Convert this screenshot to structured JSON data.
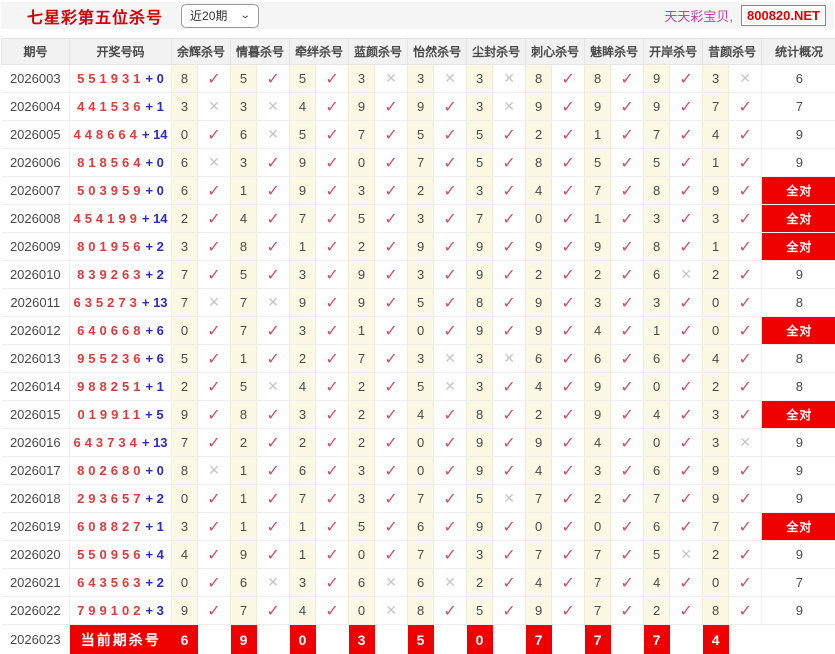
{
  "topbar": {
    "title": "七星彩第五位杀号",
    "range_select": "近20期",
    "site_name": "天天彩宝贝,",
    "site_domain": "800820.NET"
  },
  "icons": {
    "check": "✓",
    "cross": "✕",
    "dropdown_chevron": "⌄"
  },
  "colors": {
    "title_red": "#d40000",
    "draw_red": "#e4393c",
    "bonus_blue": "#2b2bd0",
    "check_red": "#d05068",
    "cross_gray": "#c6c6c6",
    "kill_cell_yellow": "#fbf8e3",
    "stat_all_red": "#ee0000",
    "site_name_pink": "#cf3da0"
  },
  "table": {
    "headers": {
      "period": "期号",
      "draw": "开奖号码",
      "stats": "统计概况",
      "kill_columns": [
        "余辉杀号",
        "情暮杀号",
        "牵绊杀号",
        "蓝颜杀号",
        "怡然杀号",
        "尘封杀号",
        "刺心杀号",
        "魅眸杀号",
        "开岸杀号",
        "昔颜杀号"
      ]
    },
    "stat_all_label": "全对",
    "rows": [
      {
        "period": "2026003",
        "draw": "551931",
        "bonus": "0",
        "kills": [
          {
            "n": "8",
            "hit": true
          },
          {
            "n": "5",
            "hit": true
          },
          {
            "n": "5",
            "hit": true
          },
          {
            "n": "3",
            "hit": false
          },
          {
            "n": "3",
            "hit": false
          },
          {
            "n": "3",
            "hit": false
          },
          {
            "n": "8",
            "hit": true
          },
          {
            "n": "8",
            "hit": true
          },
          {
            "n": "9",
            "hit": true
          },
          {
            "n": "3",
            "hit": false
          }
        ],
        "stat": "6",
        "all": false
      },
      {
        "period": "2026004",
        "draw": "441536",
        "bonus": "1",
        "kills": [
          {
            "n": "3",
            "hit": false
          },
          {
            "n": "3",
            "hit": false
          },
          {
            "n": "4",
            "hit": true
          },
          {
            "n": "9",
            "hit": true
          },
          {
            "n": "9",
            "hit": true
          },
          {
            "n": "3",
            "hit": false
          },
          {
            "n": "9",
            "hit": true
          },
          {
            "n": "9",
            "hit": true
          },
          {
            "n": "9",
            "hit": true
          },
          {
            "n": "7",
            "hit": true
          }
        ],
        "stat": "7",
        "all": false
      },
      {
        "period": "2026005",
        "draw": "448664",
        "bonus": "14",
        "kills": [
          {
            "n": "0",
            "hit": true
          },
          {
            "n": "6",
            "hit": false
          },
          {
            "n": "5",
            "hit": true
          },
          {
            "n": "7",
            "hit": true
          },
          {
            "n": "5",
            "hit": true
          },
          {
            "n": "5",
            "hit": true
          },
          {
            "n": "2",
            "hit": true
          },
          {
            "n": "1",
            "hit": true
          },
          {
            "n": "7",
            "hit": true
          },
          {
            "n": "4",
            "hit": true
          }
        ],
        "stat": "9",
        "all": false
      },
      {
        "period": "2026006",
        "draw": "818564",
        "bonus": "0",
        "kills": [
          {
            "n": "6",
            "hit": false
          },
          {
            "n": "3",
            "hit": true
          },
          {
            "n": "9",
            "hit": true
          },
          {
            "n": "0",
            "hit": true
          },
          {
            "n": "7",
            "hit": true
          },
          {
            "n": "5",
            "hit": true
          },
          {
            "n": "8",
            "hit": true
          },
          {
            "n": "5",
            "hit": true
          },
          {
            "n": "5",
            "hit": true
          },
          {
            "n": "1",
            "hit": true
          }
        ],
        "stat": "9",
        "all": false
      },
      {
        "period": "2026007",
        "draw": "503959",
        "bonus": "0",
        "kills": [
          {
            "n": "6",
            "hit": true
          },
          {
            "n": "1",
            "hit": true
          },
          {
            "n": "9",
            "hit": true
          },
          {
            "n": "3",
            "hit": true
          },
          {
            "n": "2",
            "hit": true
          },
          {
            "n": "3",
            "hit": true
          },
          {
            "n": "4",
            "hit": true
          },
          {
            "n": "7",
            "hit": true
          },
          {
            "n": "8",
            "hit": true
          },
          {
            "n": "9",
            "hit": true
          }
        ],
        "stat": "全对",
        "all": true
      },
      {
        "period": "2026008",
        "draw": "454199",
        "bonus": "14",
        "kills": [
          {
            "n": "2",
            "hit": true
          },
          {
            "n": "4",
            "hit": true
          },
          {
            "n": "7",
            "hit": true
          },
          {
            "n": "5",
            "hit": true
          },
          {
            "n": "3",
            "hit": true
          },
          {
            "n": "7",
            "hit": true
          },
          {
            "n": "0",
            "hit": true
          },
          {
            "n": "1",
            "hit": true
          },
          {
            "n": "3",
            "hit": true
          },
          {
            "n": "3",
            "hit": true
          }
        ],
        "stat": "全对",
        "all": true
      },
      {
        "period": "2026009",
        "draw": "801956",
        "bonus": "2",
        "kills": [
          {
            "n": "3",
            "hit": true
          },
          {
            "n": "8",
            "hit": true
          },
          {
            "n": "1",
            "hit": true
          },
          {
            "n": "2",
            "hit": true
          },
          {
            "n": "9",
            "hit": true
          },
          {
            "n": "9",
            "hit": true
          },
          {
            "n": "9",
            "hit": true
          },
          {
            "n": "9",
            "hit": true
          },
          {
            "n": "8",
            "hit": true
          },
          {
            "n": "1",
            "hit": true
          }
        ],
        "stat": "全对",
        "all": true
      },
      {
        "period": "2026010",
        "draw": "839263",
        "bonus": "2",
        "kills": [
          {
            "n": "7",
            "hit": true
          },
          {
            "n": "5",
            "hit": true
          },
          {
            "n": "3",
            "hit": true
          },
          {
            "n": "9",
            "hit": true
          },
          {
            "n": "3",
            "hit": true
          },
          {
            "n": "9",
            "hit": true
          },
          {
            "n": "2",
            "hit": true
          },
          {
            "n": "2",
            "hit": true
          },
          {
            "n": "6",
            "hit": false
          },
          {
            "n": "2",
            "hit": true
          }
        ],
        "stat": "9",
        "all": false
      },
      {
        "period": "2026011",
        "draw": "635273",
        "bonus": "13",
        "kills": [
          {
            "n": "7",
            "hit": false
          },
          {
            "n": "7",
            "hit": false
          },
          {
            "n": "9",
            "hit": true
          },
          {
            "n": "9",
            "hit": true
          },
          {
            "n": "5",
            "hit": true
          },
          {
            "n": "8",
            "hit": true
          },
          {
            "n": "9",
            "hit": true
          },
          {
            "n": "3",
            "hit": true
          },
          {
            "n": "3",
            "hit": true
          },
          {
            "n": "0",
            "hit": true
          }
        ],
        "stat": "8",
        "all": false
      },
      {
        "period": "2026012",
        "draw": "640668",
        "bonus": "6",
        "kills": [
          {
            "n": "0",
            "hit": true
          },
          {
            "n": "7",
            "hit": true
          },
          {
            "n": "3",
            "hit": true
          },
          {
            "n": "1",
            "hit": true
          },
          {
            "n": "0",
            "hit": true
          },
          {
            "n": "9",
            "hit": true
          },
          {
            "n": "9",
            "hit": true
          },
          {
            "n": "4",
            "hit": true
          },
          {
            "n": "1",
            "hit": true
          },
          {
            "n": "0",
            "hit": true
          }
        ],
        "stat": "全对",
        "all": true
      },
      {
        "period": "2026013",
        "draw": "955236",
        "bonus": "6",
        "kills": [
          {
            "n": "5",
            "hit": true
          },
          {
            "n": "1",
            "hit": true
          },
          {
            "n": "2",
            "hit": true
          },
          {
            "n": "7",
            "hit": true
          },
          {
            "n": "3",
            "hit": false
          },
          {
            "n": "3",
            "hit": false
          },
          {
            "n": "6",
            "hit": true
          },
          {
            "n": "6",
            "hit": true
          },
          {
            "n": "6",
            "hit": true
          },
          {
            "n": "4",
            "hit": true
          }
        ],
        "stat": "8",
        "all": false
      },
      {
        "period": "2026014",
        "draw": "988251",
        "bonus": "1",
        "kills": [
          {
            "n": "2",
            "hit": true
          },
          {
            "n": "5",
            "hit": false
          },
          {
            "n": "4",
            "hit": true
          },
          {
            "n": "2",
            "hit": true
          },
          {
            "n": "5",
            "hit": false
          },
          {
            "n": "3",
            "hit": true
          },
          {
            "n": "4",
            "hit": true
          },
          {
            "n": "9",
            "hit": true
          },
          {
            "n": "0",
            "hit": true
          },
          {
            "n": "2",
            "hit": true
          }
        ],
        "stat": "8",
        "all": false
      },
      {
        "period": "2026015",
        "draw": "019911",
        "bonus": "5",
        "kills": [
          {
            "n": "9",
            "hit": true
          },
          {
            "n": "8",
            "hit": true
          },
          {
            "n": "3",
            "hit": true
          },
          {
            "n": "2",
            "hit": true
          },
          {
            "n": "4",
            "hit": true
          },
          {
            "n": "8",
            "hit": true
          },
          {
            "n": "2",
            "hit": true
          },
          {
            "n": "9",
            "hit": true
          },
          {
            "n": "4",
            "hit": true
          },
          {
            "n": "3",
            "hit": true
          }
        ],
        "stat": "全对",
        "all": true
      },
      {
        "period": "2026016",
        "draw": "643734",
        "bonus": "13",
        "kills": [
          {
            "n": "7",
            "hit": true
          },
          {
            "n": "2",
            "hit": true
          },
          {
            "n": "2",
            "hit": true
          },
          {
            "n": "2",
            "hit": true
          },
          {
            "n": "0",
            "hit": true
          },
          {
            "n": "9",
            "hit": true
          },
          {
            "n": "9",
            "hit": true
          },
          {
            "n": "4",
            "hit": true
          },
          {
            "n": "0",
            "hit": true
          },
          {
            "n": "3",
            "hit": false
          }
        ],
        "stat": "9",
        "all": false
      },
      {
        "period": "2026017",
        "draw": "802680",
        "bonus": "0",
        "kills": [
          {
            "n": "8",
            "hit": false
          },
          {
            "n": "1",
            "hit": true
          },
          {
            "n": "6",
            "hit": true
          },
          {
            "n": "3",
            "hit": true
          },
          {
            "n": "0",
            "hit": true
          },
          {
            "n": "9",
            "hit": true
          },
          {
            "n": "4",
            "hit": true
          },
          {
            "n": "3",
            "hit": true
          },
          {
            "n": "6",
            "hit": true
          },
          {
            "n": "9",
            "hit": true
          }
        ],
        "stat": "9",
        "all": false
      },
      {
        "period": "2026018",
        "draw": "293657",
        "bonus": "2",
        "kills": [
          {
            "n": "0",
            "hit": true
          },
          {
            "n": "1",
            "hit": true
          },
          {
            "n": "7",
            "hit": true
          },
          {
            "n": "3",
            "hit": true
          },
          {
            "n": "7",
            "hit": true
          },
          {
            "n": "5",
            "hit": false
          },
          {
            "n": "7",
            "hit": true
          },
          {
            "n": "2",
            "hit": true
          },
          {
            "n": "7",
            "hit": true
          },
          {
            "n": "9",
            "hit": true
          }
        ],
        "stat": "9",
        "all": false
      },
      {
        "period": "2026019",
        "draw": "608827",
        "bonus": "1",
        "kills": [
          {
            "n": "3",
            "hit": true
          },
          {
            "n": "1",
            "hit": true
          },
          {
            "n": "1",
            "hit": true
          },
          {
            "n": "5",
            "hit": true
          },
          {
            "n": "6",
            "hit": true
          },
          {
            "n": "9",
            "hit": true
          },
          {
            "n": "0",
            "hit": true
          },
          {
            "n": "0",
            "hit": true
          },
          {
            "n": "6",
            "hit": true
          },
          {
            "n": "7",
            "hit": true
          }
        ],
        "stat": "全对",
        "all": true
      },
      {
        "period": "2026020",
        "draw": "550956",
        "bonus": "4",
        "kills": [
          {
            "n": "4",
            "hit": true
          },
          {
            "n": "9",
            "hit": true
          },
          {
            "n": "1",
            "hit": true
          },
          {
            "n": "0",
            "hit": true
          },
          {
            "n": "7",
            "hit": true
          },
          {
            "n": "3",
            "hit": true
          },
          {
            "n": "7",
            "hit": true
          },
          {
            "n": "7",
            "hit": true
          },
          {
            "n": "5",
            "hit": false
          },
          {
            "n": "2",
            "hit": true
          }
        ],
        "stat": "9",
        "all": false
      },
      {
        "period": "2026021",
        "draw": "643563",
        "bonus": "2",
        "kills": [
          {
            "n": "0",
            "hit": true
          },
          {
            "n": "6",
            "hit": false
          },
          {
            "n": "3",
            "hit": true
          },
          {
            "n": "6",
            "hit": false
          },
          {
            "n": "6",
            "hit": false
          },
          {
            "n": "2",
            "hit": true
          },
          {
            "n": "4",
            "hit": true
          },
          {
            "n": "7",
            "hit": true
          },
          {
            "n": "4",
            "hit": true
          },
          {
            "n": "0",
            "hit": true
          }
        ],
        "stat": "7",
        "all": false
      },
      {
        "period": "2026022",
        "draw": "799102",
        "bonus": "3",
        "kills": [
          {
            "n": "9",
            "hit": true
          },
          {
            "n": "7",
            "hit": true
          },
          {
            "n": "4",
            "hit": true
          },
          {
            "n": "0",
            "hit": false
          },
          {
            "n": "8",
            "hit": true
          },
          {
            "n": "5",
            "hit": true
          },
          {
            "n": "9",
            "hit": true
          },
          {
            "n": "7",
            "hit": true
          },
          {
            "n": "2",
            "hit": true
          },
          {
            "n": "8",
            "hit": true
          }
        ],
        "stat": "9",
        "all": false
      }
    ],
    "footer": {
      "period": "2026023",
      "label": "当前期杀号",
      "kills": [
        "6",
        "9",
        "0",
        "3",
        "5",
        "0",
        "7",
        "7",
        "7",
        "4"
      ]
    }
  }
}
